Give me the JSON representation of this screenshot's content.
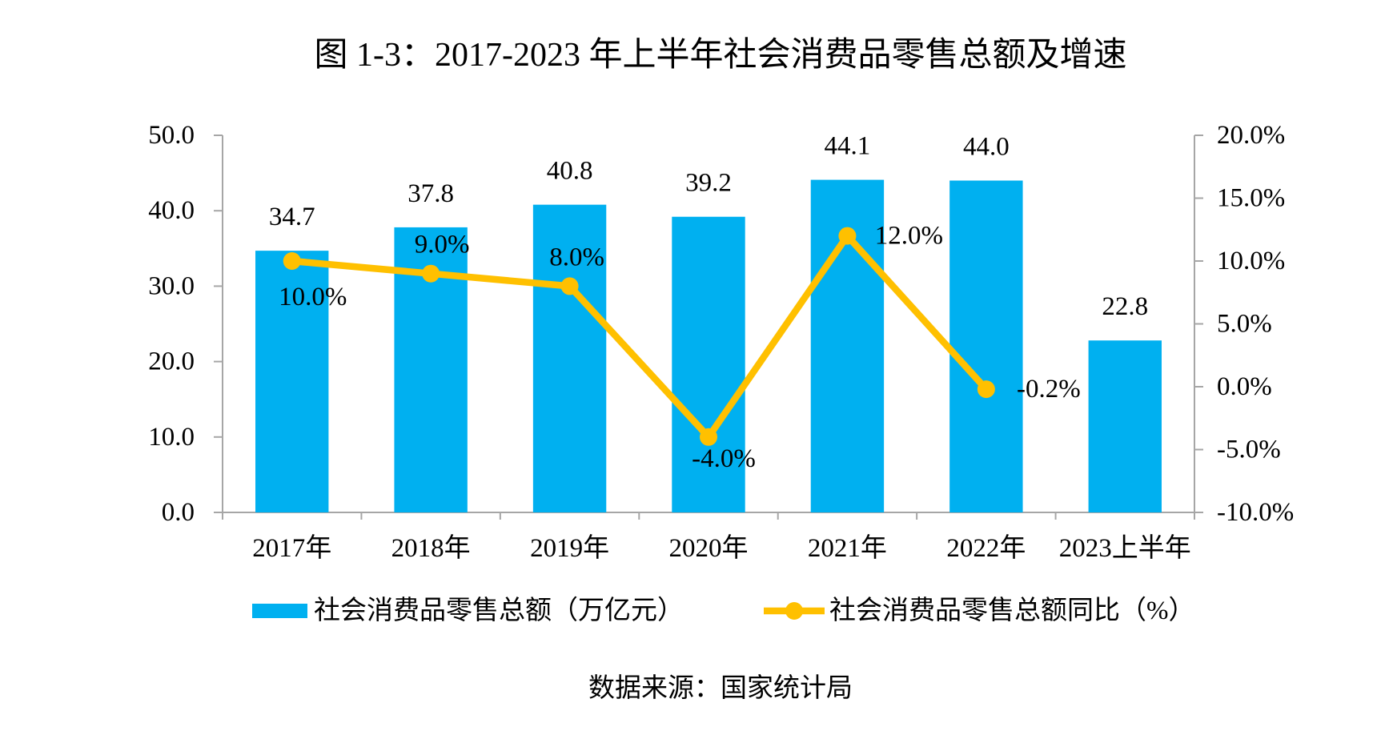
{
  "chart_data": {
    "type": "bar",
    "title": "图 1-3：2017-2023 年上半年社会消费品零售总额及增速",
    "categories": [
      "2017年",
      "2018年",
      "2019年",
      "2020年",
      "2021年",
      "2022年",
      "2023上半年"
    ],
    "series": [
      {
        "name": "社会消费品零售总额（万亿元）",
        "type": "bar",
        "axis": "left",
        "values": [
          34.7,
          37.8,
          40.8,
          39.2,
          44.1,
          44.0,
          22.8
        ],
        "data_labels": [
          "34.7",
          "37.8",
          "40.8",
          "39.2",
          "44.1",
          "44.0",
          "22.8"
        ]
      },
      {
        "name": "社会消费品零售总额同比（%）",
        "type": "line",
        "axis": "right",
        "values": [
          10.0,
          9.0,
          8.0,
          -4.0,
          12.0,
          -0.2,
          null
        ],
        "data_labels": [
          "10.0%",
          "9.0%",
          "8.0%",
          "-4.0%",
          "12.0%",
          "-0.2%"
        ]
      }
    ],
    "y_left": {
      "range": [
        0,
        50
      ],
      "ticks": [
        "0.0",
        "10.0",
        "20.0",
        "30.0",
        "40.0",
        "50.0"
      ]
    },
    "y_right": {
      "range": [
        -10,
        20
      ],
      "ticks": [
        "-10.0%",
        "-5.0%",
        "0.0%",
        "5.0%",
        "10.0%",
        "15.0%",
        "20.0%"
      ]
    },
    "grid": false,
    "legend": "bottom",
    "colors": {
      "bar": "#00B0F0",
      "line": "#FFC000",
      "axis": "#A6A6A6",
      "text": "#000000"
    }
  },
  "source_note": "数据来源：国家统计局"
}
